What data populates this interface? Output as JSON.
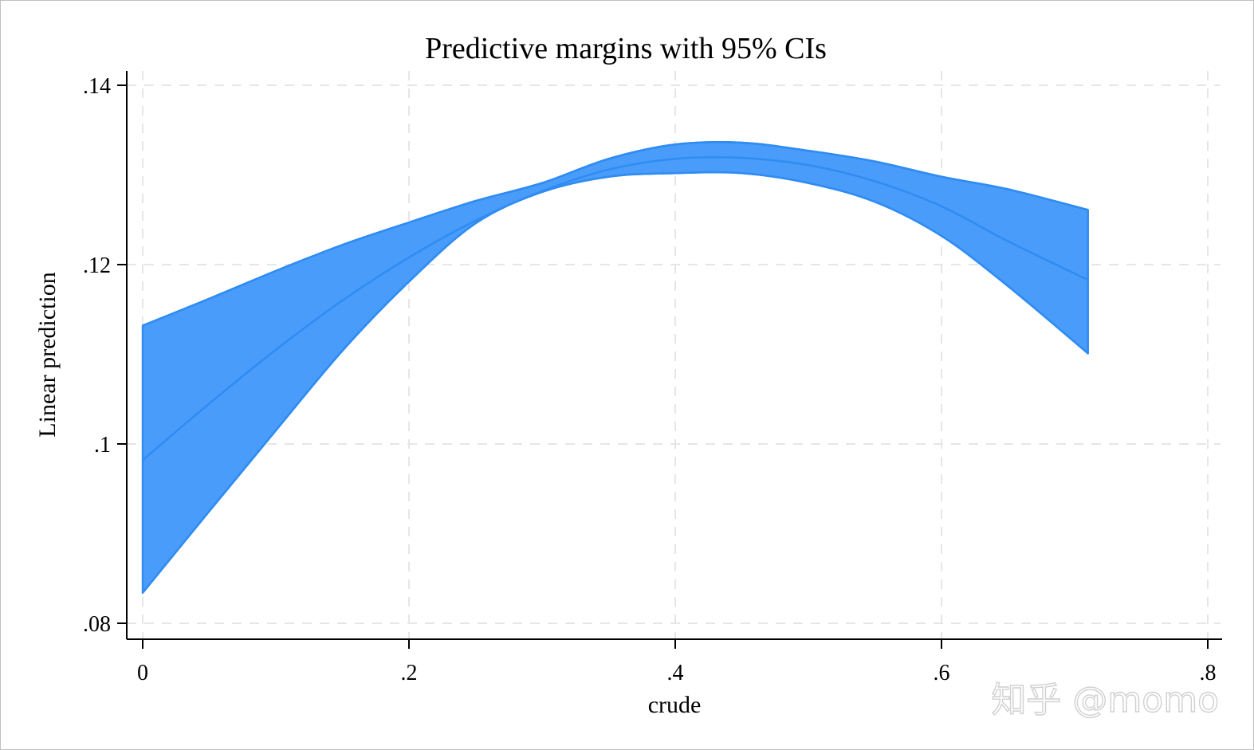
{
  "chart_data": {
    "type": "area",
    "title": "Predictive margins with 95% CIs",
    "xlabel": "crude",
    "ylabel": "Linear prediction",
    "xlim": [
      0,
      0.8
    ],
    "ylim": [
      0.08,
      0.14
    ],
    "x_ticks": [
      {
        "value": 0,
        "label": "0"
      },
      {
        "value": 0.2,
        "label": ".2"
      },
      {
        "value": 0.4,
        "label": ".4"
      },
      {
        "value": 0.6,
        "label": ".6"
      },
      {
        "value": 0.8,
        "label": ".8"
      }
    ],
    "y_ticks": [
      {
        "value": 0.08,
        "label": ".08"
      },
      {
        "value": 0.1,
        "label": ".1"
      },
      {
        "value": 0.12,
        "label": ".12"
      },
      {
        "value": 0.14,
        "label": ".14"
      }
    ],
    "grid": true,
    "series": [
      {
        "x": [
          0,
          0.05,
          0.1,
          0.15,
          0.2,
          0.25,
          0.3,
          0.35,
          0.4,
          0.45,
          0.5,
          0.55,
          0.6,
          0.65,
          0.71
        ],
        "fit": [
          0.0982,
          0.1045,
          0.1105,
          0.116,
          0.1208,
          0.1249,
          0.1282,
          0.1306,
          0.1318,
          0.1319,
          0.1311,
          0.1293,
          0.1265,
          0.1226,
          0.1183
        ],
        "upper": [
          0.1132,
          0.1162,
          0.1193,
          0.1222,
          0.1247,
          0.1271,
          0.1291,
          0.1318,
          0.1334,
          0.1336,
          0.1327,
          0.1315,
          0.1298,
          0.1284,
          0.1261
        ],
        "lower": [
          0.0834,
          0.0925,
          0.1015,
          0.1104,
          0.1181,
          0.1246,
          0.1281,
          0.1298,
          0.1302,
          0.1302,
          0.1291,
          0.127,
          0.1232,
          0.1176,
          0.1101
        ]
      }
    ],
    "colors": {
      "band_fill": "#4a9cfa",
      "band_edge": "#2f8cf2",
      "fit_line": "#2f8cf2",
      "grid": "#e6e6e6",
      "axis": "#000000"
    }
  },
  "watermark": {
    "text": "知乎 @momo"
  }
}
